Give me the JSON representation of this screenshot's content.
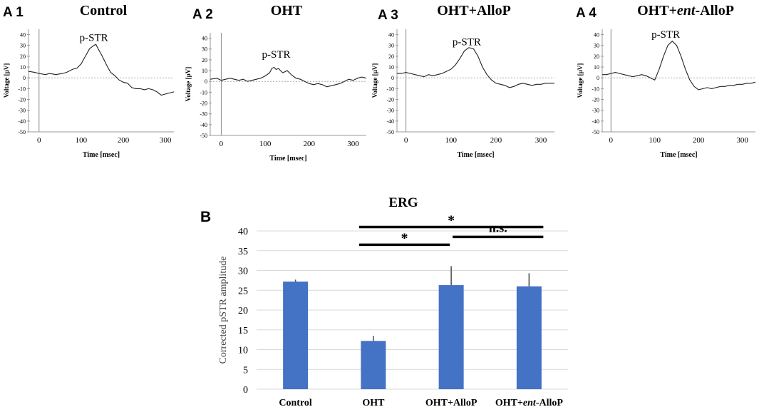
{
  "chart_data": [
    {
      "type": "line",
      "panel": "A 1",
      "title": "Control",
      "xlabel": "Time [msec]",
      "ylabel": "Voltage [µV]",
      "xlim": [
        -25,
        320
      ],
      "ylim": [
        -50,
        45
      ],
      "xticks": [
        "0",
        "100",
        "200",
        "300"
      ],
      "xtick_values": [
        0,
        100,
        200,
        300
      ],
      "yticks": [
        "40",
        "30",
        "20",
        "10",
        "0",
        "-10",
        "-20",
        "-30",
        "-40",
        "-50"
      ],
      "ytick_values": [
        40,
        30,
        20,
        10,
        0,
        -10,
        -20,
        -30,
        -40,
        -50
      ],
      "annotation": "p-STR",
      "annotation_at": [
        130,
        34
      ],
      "x": [
        -25,
        -10,
        0,
        15,
        25,
        40,
        55,
        65,
        80,
        90,
        100,
        110,
        120,
        130,
        135,
        140,
        150,
        160,
        170,
        180,
        190,
        200,
        210,
        220,
        230,
        240,
        250,
        260,
        270,
        280,
        290,
        300,
        310,
        320
      ],
      "y": [
        6,
        5,
        4,
        3,
        4,
        3,
        4,
        5,
        8,
        9,
        13,
        20,
        27,
        30,
        31,
        27,
        20,
        12,
        5,
        2,
        -2,
        -4,
        -5,
        -9,
        -10,
        -10,
        -11,
        -10,
        -11,
        -13,
        -16,
        -15,
        -14,
        -13
      ]
    },
    {
      "type": "line",
      "panel": "A 2",
      "title": "OHT",
      "xlabel": "Time [msec]",
      "ylabel": "Voltage [µV]",
      "xlim": [
        -25,
        330
      ],
      "ylim": [
        -50,
        45
      ],
      "xticks": [
        "0",
        "100",
        "200",
        "300"
      ],
      "xtick_values": [
        0,
        100,
        200,
        300
      ],
      "yticks": [
        "40",
        "30",
        "20",
        "10",
        "0",
        "-10",
        "-20",
        "-30",
        "-40",
        "-50"
      ],
      "ytick_values": [
        40,
        30,
        20,
        10,
        0,
        -10,
        -20,
        -30,
        -40,
        -50
      ],
      "annotation": "p-STR",
      "annotation_at": [
        125,
        22
      ],
      "x": [
        -25,
        -10,
        0,
        10,
        20,
        30,
        40,
        50,
        60,
        70,
        80,
        90,
        100,
        110,
        115,
        120,
        125,
        130,
        135,
        140,
        150,
        160,
        170,
        180,
        190,
        200,
        210,
        220,
        230,
        240,
        250,
        260,
        270,
        280,
        290,
        300,
        310,
        320,
        330
      ],
      "y": [
        2,
        3,
        1,
        2,
        3,
        2,
        1,
        2,
        0,
        1,
        2,
        3,
        5,
        8,
        12,
        13,
        11,
        12,
        10,
        8,
        10,
        6,
        3,
        2,
        0,
        -2,
        -3,
        -2,
        -3,
        -5,
        -4,
        -3,
        -2,
        0,
        2,
        1,
        3,
        4,
        3
      ]
    },
    {
      "type": "line",
      "panel": "A 3",
      "title": "OHT+AlloP",
      "xlabel": "Time [msec]",
      "ylabel": "Voltage [µV]",
      "xlim": [
        -20,
        330
      ],
      "ylim": [
        -50,
        45
      ],
      "xticks": [
        "0",
        "100",
        "200",
        "300"
      ],
      "xtick_values": [
        0,
        100,
        200,
        300
      ],
      "yticks": [
        "40",
        "30",
        "20",
        "10",
        "0",
        "-10",
        "-20",
        "-30",
        "-40",
        "-50"
      ],
      "ytick_values": [
        40,
        30,
        20,
        10,
        0,
        -10,
        -20,
        -30,
        -40,
        -50
      ],
      "annotation": "p-STR",
      "annotation_at": [
        135,
        30
      ],
      "x": [
        -20,
        -10,
        0,
        10,
        20,
        30,
        40,
        50,
        60,
        70,
        80,
        90,
        100,
        110,
        120,
        130,
        140,
        150,
        160,
        170,
        180,
        190,
        200,
        210,
        220,
        230,
        240,
        250,
        260,
        270,
        280,
        290,
        300,
        310,
        320,
        330
      ],
      "y": [
        4,
        4,
        5,
        4,
        3,
        2,
        1,
        3,
        2,
        3,
        4,
        6,
        8,
        12,
        18,
        25,
        28,
        27,
        20,
        10,
        3,
        -2,
        -5,
        -6,
        -7,
        -9,
        -8,
        -6,
        -5,
        -6,
        -7,
        -6,
        -6,
        -5,
        -5,
        -5
      ]
    },
    {
      "type": "line",
      "panel": "A 4",
      "title": "OHT+ent-AlloP",
      "xlabel": "Time [msec]",
      "ylabel": "Voltage [µV]",
      "xlim": [
        -20,
        330
      ],
      "ylim": [
        -50,
        45
      ],
      "xticks": [
        "0",
        "100",
        "200",
        "300"
      ],
      "xtick_values": [
        0,
        100,
        200,
        300
      ],
      "yticks": [
        "40",
        "30",
        "20",
        "10",
        "0",
        "-10",
        "-20",
        "-30",
        "-40",
        "-50"
      ],
      "ytick_values": [
        40,
        30,
        20,
        10,
        0,
        -10,
        -20,
        -30,
        -40,
        -50
      ],
      "annotation": "p-STR",
      "annotation_at": [
        125,
        37
      ],
      "x": [
        -20,
        -10,
        0,
        10,
        20,
        30,
        40,
        50,
        60,
        70,
        80,
        90,
        100,
        110,
        120,
        130,
        140,
        150,
        160,
        170,
        180,
        190,
        200,
        210,
        220,
        230,
        240,
        250,
        260,
        270,
        280,
        290,
        300,
        310,
        320,
        330
      ],
      "y": [
        3,
        3,
        4,
        5,
        4,
        3,
        2,
        1,
        2,
        3,
        2,
        0,
        -2,
        8,
        20,
        30,
        34,
        30,
        20,
        8,
        -2,
        -8,
        -11,
        -10,
        -9,
        -10,
        -9,
        -8,
        -8,
        -7,
        -7,
        -6,
        -6,
        -5,
        -5,
        -4
      ]
    },
    {
      "type": "bar",
      "panel": "B",
      "title": "ERG",
      "ylabel": "Corrected pSTR amplitude",
      "categories": [
        "Control",
        "OHT",
        "OHT+AlloP",
        "OHT+ent-AlloP"
      ],
      "category_parts": [
        [
          "Control"
        ],
        [
          "OHT"
        ],
        [
          "OHT+AlloP"
        ],
        [
          "OHT+",
          "ent",
          "-AlloP"
        ]
      ],
      "values": [
        27.2,
        12.2,
        26.3,
        26.0
      ],
      "errors": [
        0.5,
        1.3,
        4.8,
        3.3
      ],
      "ylim": [
        0,
        40
      ],
      "yticks": [
        "0",
        "5",
        "10",
        "15",
        "20",
        "25",
        "30",
        "35",
        "40"
      ],
      "ytick_values": [
        0,
        5,
        10,
        15,
        20,
        25,
        30,
        35,
        40
      ],
      "bar_color": "#4472c4",
      "grid": true,
      "significance": [
        {
          "from": 1,
          "to": 3,
          "label": "*",
          "level": 41
        },
        {
          "from": 1,
          "to": 2,
          "label": "*",
          "level": 36.5
        },
        {
          "from": 2,
          "to": 3,
          "label": "n.s.",
          "level": 38.5
        }
      ]
    }
  ]
}
